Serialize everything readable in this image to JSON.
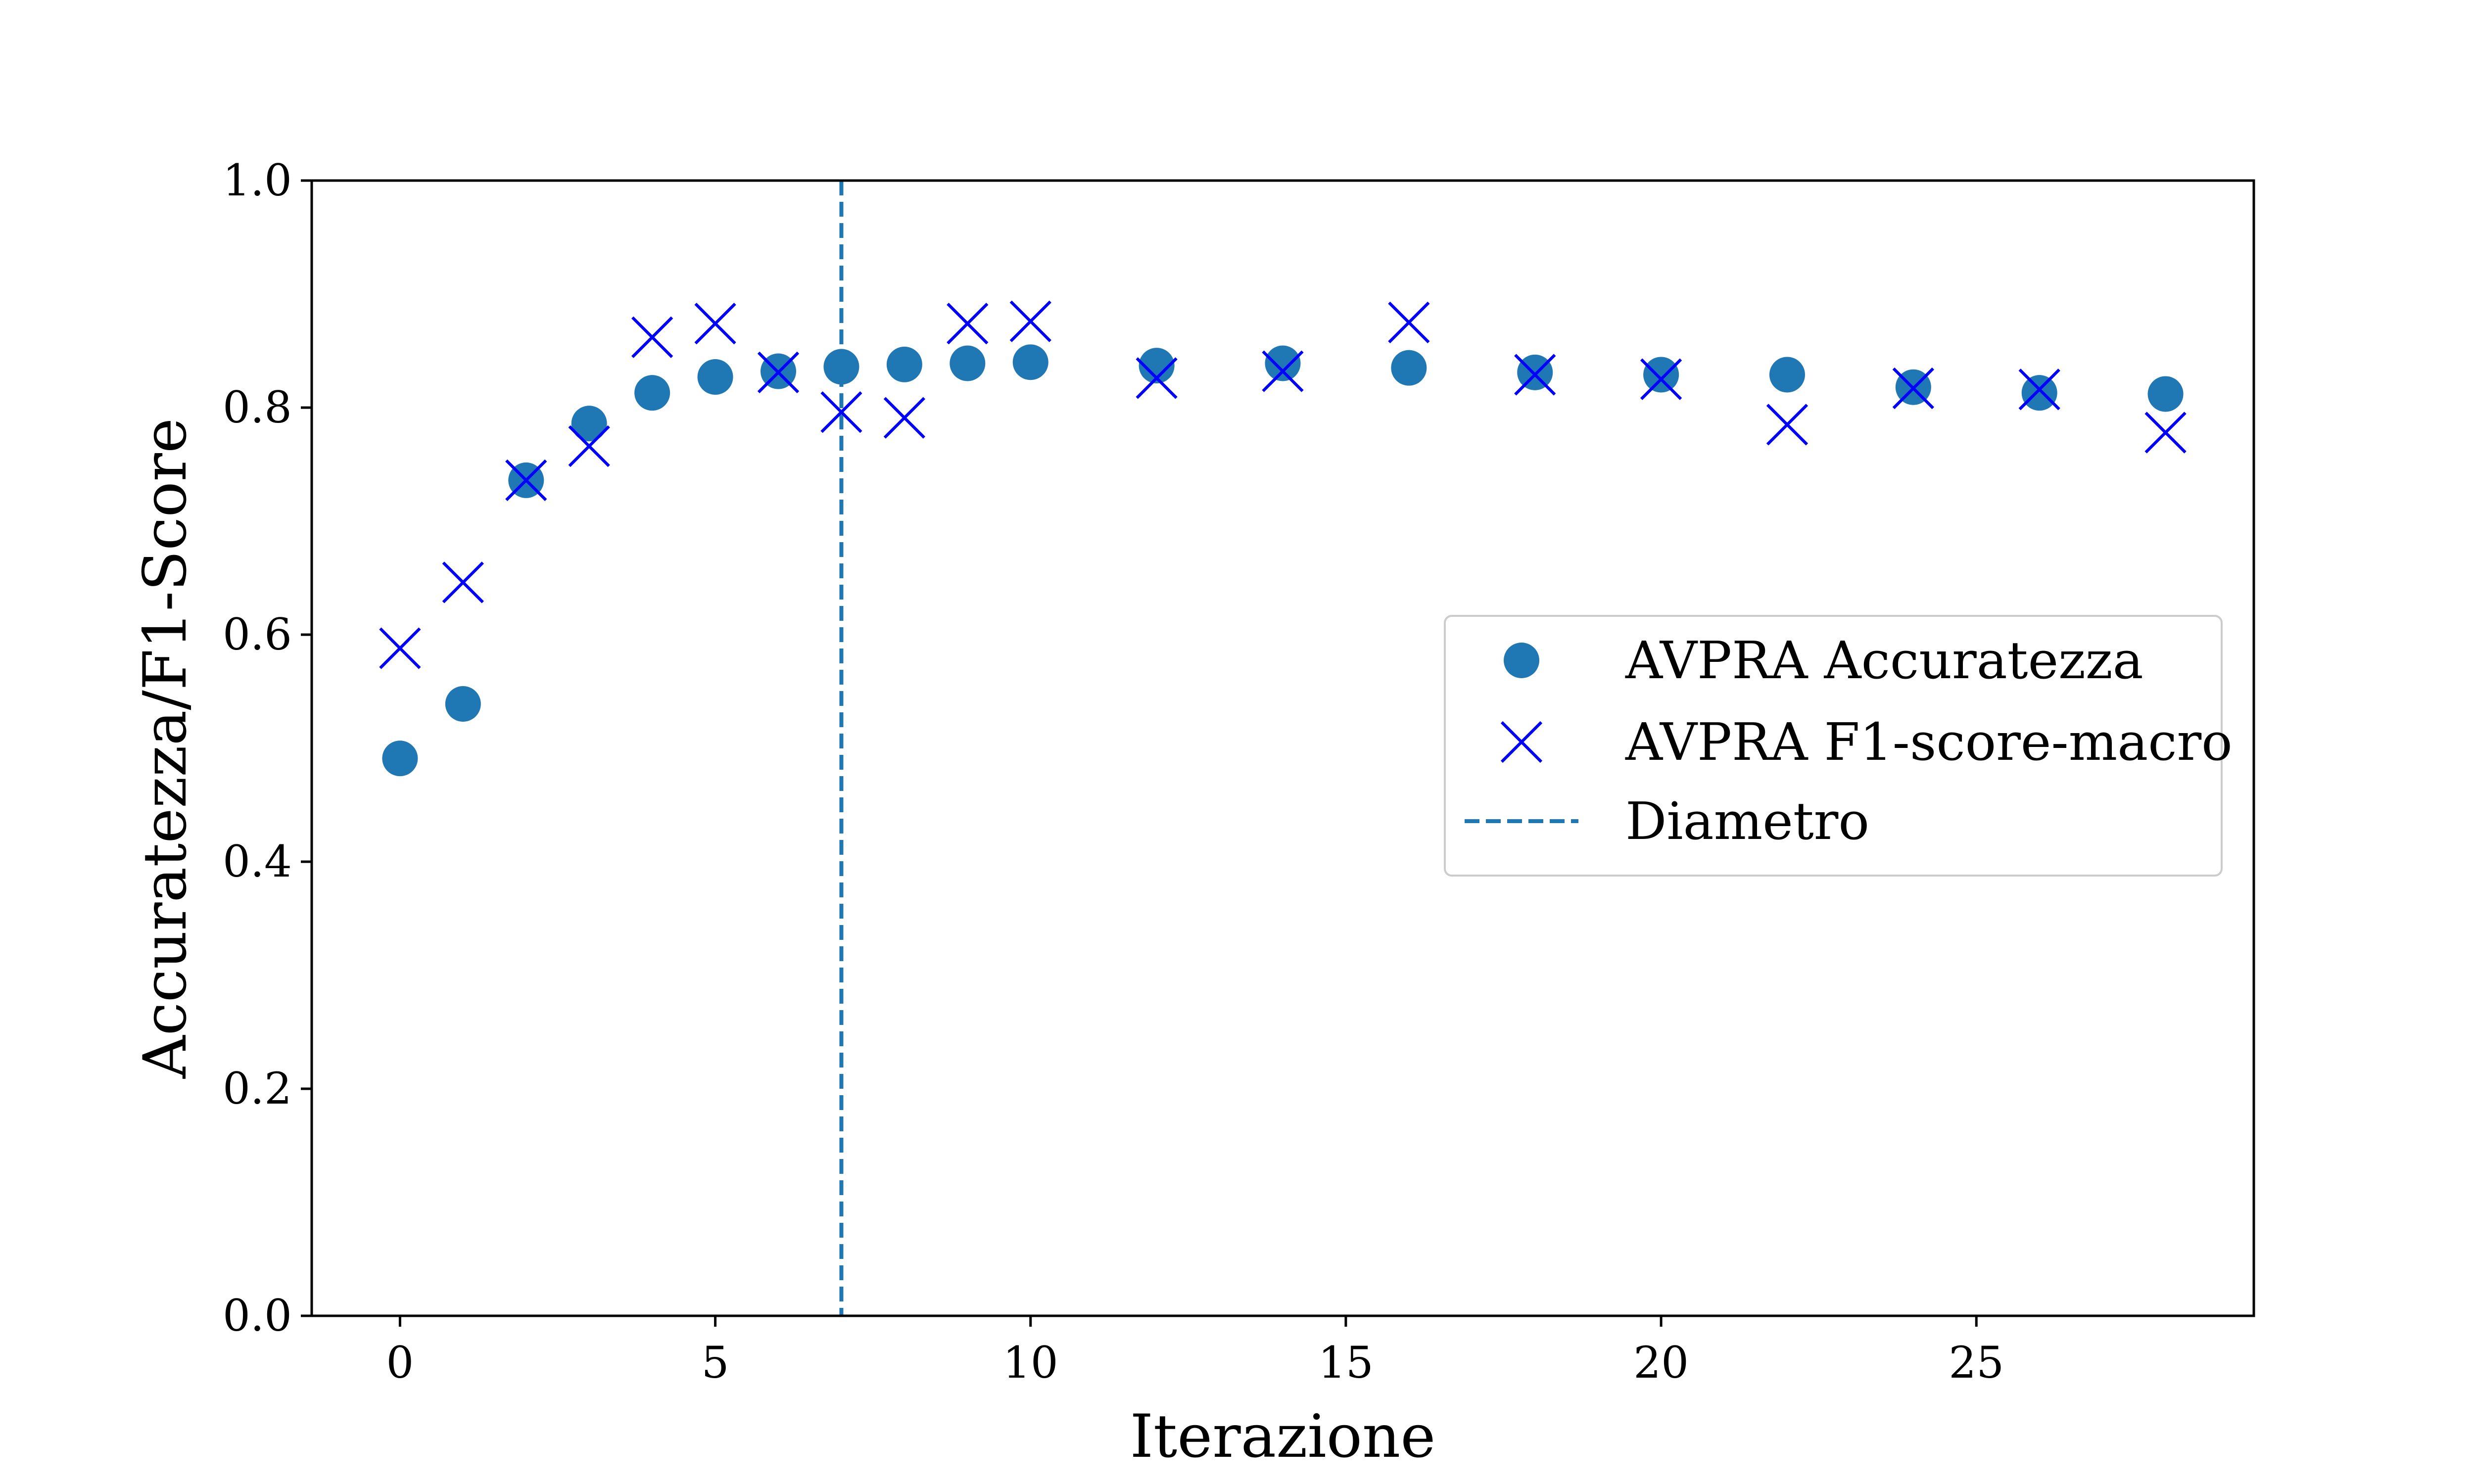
{
  "chart_data": {
    "type": "scatter",
    "title": "",
    "xlabel": "Iterazione",
    "ylabel": "Accuratezza/F1-Score",
    "xlim": [
      -1.4,
      29.4
    ],
    "ylim": [
      0.0,
      1.0
    ],
    "xticks": [
      0,
      5,
      10,
      15,
      20,
      25
    ],
    "xtick_labels": [
      "0",
      "5",
      "10",
      "15",
      "20",
      "25"
    ],
    "yticks": [
      0.0,
      0.2,
      0.4,
      0.6,
      0.8,
      1.0
    ],
    "ytick_labels": [
      "0.0",
      "0.2",
      "0.4",
      "0.6",
      "0.8",
      "1.0"
    ],
    "grid": false,
    "legend_position": "center-right",
    "series": [
      {
        "name": "AVPRA Accuratezza",
        "marker": "circle",
        "color": "#1f77b4",
        "x": [
          0,
          1,
          2,
          3,
          4,
          5,
          6,
          7,
          8,
          9,
          10,
          12,
          14,
          16,
          18,
          20,
          22,
          24,
          26,
          28
        ],
        "y": [
          0.491,
          0.539,
          0.736,
          0.786,
          0.813,
          0.827,
          0.832,
          0.836,
          0.838,
          0.839,
          0.84,
          0.837,
          0.839,
          0.835,
          0.831,
          0.829,
          0.829,
          0.818,
          0.813,
          0.812
        ]
      },
      {
        "name": "AVPRA F1-score-macro",
        "marker": "x",
        "color": "#0000ff",
        "x": [
          0,
          1,
          2,
          3,
          4,
          5,
          6,
          7,
          8,
          9,
          10,
          12,
          14,
          16,
          18,
          20,
          22,
          24,
          26,
          28
        ],
        "y": [
          0.588,
          0.646,
          0.736,
          0.766,
          0.862,
          0.874,
          0.831,
          0.796,
          0.791,
          0.874,
          0.876,
          0.826,
          0.832,
          0.875,
          0.829,
          0.825,
          0.785,
          0.817,
          0.816,
          0.778
        ]
      }
    ],
    "vline": {
      "name": "Diametro",
      "x": 7,
      "style": "dashed",
      "color": "#1f77b4"
    }
  }
}
